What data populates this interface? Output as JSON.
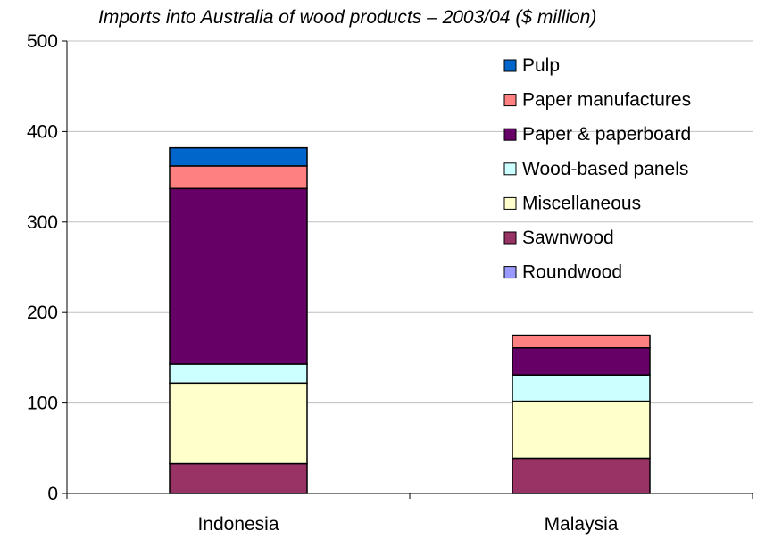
{
  "chart_data": {
    "type": "bar",
    "stacked": true,
    "title": "Imports into Australia of wood products – 2003/04 ($ million)",
    "xlabel": "",
    "ylabel": "",
    "ylim": [
      0,
      500
    ],
    "yticks": [
      "0",
      "100",
      "200",
      "300",
      "400",
      "500"
    ],
    "grid": true,
    "legend_position": "top-right",
    "categories": [
      "Indonesia",
      "Malaysia"
    ],
    "series": [
      {
        "name": "Roundwood",
        "color": "#9999ff",
        "values": [
          0,
          0
        ]
      },
      {
        "name": "Sawnwood",
        "color": "#993366",
        "values": [
          33,
          39
        ]
      },
      {
        "name": "Miscellaneous",
        "color": "#ffffcc",
        "values": [
          89,
          63
        ]
      },
      {
        "name": "Wood-based panels",
        "color": "#ccffff",
        "values": [
          21,
          29
        ]
      },
      {
        "name": "Paper & paperboard",
        "color": "#660066",
        "values": [
          194,
          30
        ]
      },
      {
        "name": "Paper manufactures",
        "color": "#ff8080",
        "values": [
          25,
          14
        ]
      },
      {
        "name": "Pulp",
        "color": "#0066cc",
        "values": [
          20,
          0
        ]
      }
    ],
    "legend_order": [
      "Pulp",
      "Paper manufactures",
      "Paper & paperboard",
      "Wood-based panels",
      "Miscellaneous",
      "Sawnwood",
      "Roundwood"
    ]
  }
}
